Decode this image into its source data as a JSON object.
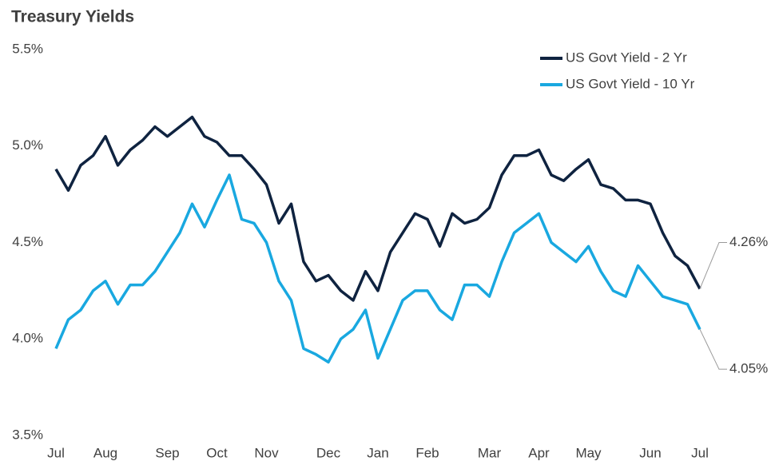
{
  "chart_data": {
    "type": "line",
    "title": "Treasury Yields",
    "categories": [
      "Jul",
      null,
      null,
      null,
      "Aug",
      null,
      null,
      null,
      null,
      "Sep",
      null,
      null,
      null,
      "Oct",
      null,
      null,
      null,
      "Nov",
      null,
      null,
      null,
      null,
      "Dec",
      null,
      null,
      null,
      "Jan",
      null,
      null,
      null,
      "Feb",
      null,
      null,
      null,
      null,
      "Mar",
      null,
      null,
      null,
      "Apr",
      null,
      null,
      null,
      "May",
      null,
      null,
      null,
      null,
      "Jun",
      null,
      null,
      null,
      "Jul"
    ],
    "series": [
      {
        "name": "US Govt Yield - 2 Yr",
        "color": "#0f2340",
        "values": [
          4.88,
          4.77,
          4.9,
          4.95,
          5.05,
          4.9,
          4.98,
          5.03,
          5.1,
          5.05,
          5.1,
          5.15,
          5.05,
          5.02,
          4.95,
          4.95,
          4.88,
          4.8,
          4.6,
          4.7,
          4.4,
          4.3,
          4.33,
          4.25,
          4.2,
          4.35,
          4.25,
          4.45,
          4.55,
          4.65,
          4.62,
          4.48,
          4.65,
          4.6,
          4.62,
          4.68,
          4.85,
          4.95,
          4.95,
          4.98,
          4.85,
          4.82,
          4.88,
          4.93,
          4.8,
          4.78,
          4.72,
          4.72,
          4.7,
          4.55,
          4.43,
          4.38,
          4.26
        ],
        "value_labels": [
          null,
          null,
          null,
          null,
          null,
          null,
          null,
          null,
          null,
          null,
          null,
          null,
          null,
          null,
          null,
          null,
          null,
          null,
          null,
          null,
          null,
          null,
          null,
          null,
          null,
          null,
          null,
          null,
          null,
          null,
          null,
          null,
          null,
          null,
          null,
          null,
          null,
          null,
          null,
          null,
          null,
          null,
          null,
          null,
          null,
          null,
          null,
          null,
          null,
          null,
          null,
          null,
          "4.26%"
        ]
      },
      {
        "name": "US Govt Yield - 10 Yr",
        "color": "#19a8e0",
        "values": [
          3.95,
          4.1,
          4.15,
          4.25,
          4.3,
          4.18,
          4.28,
          4.28,
          4.35,
          4.45,
          4.55,
          4.7,
          4.58,
          4.72,
          4.85,
          4.62,
          4.6,
          4.5,
          4.3,
          4.2,
          3.95,
          3.92,
          3.88,
          4.0,
          4.05,
          4.15,
          3.9,
          4.05,
          4.2,
          4.25,
          4.25,
          4.15,
          4.1,
          4.28,
          4.28,
          4.22,
          4.4,
          4.55,
          4.6,
          4.65,
          4.5,
          4.45,
          4.4,
          4.48,
          4.35,
          4.25,
          4.22,
          4.38,
          4.3,
          4.22,
          4.2,
          4.18,
          4.05
        ],
        "value_labels": [
          null,
          null,
          null,
          null,
          null,
          null,
          null,
          null,
          null,
          null,
          null,
          null,
          null,
          null,
          null,
          null,
          null,
          null,
          null,
          null,
          null,
          null,
          null,
          null,
          null,
          null,
          null,
          null,
          null,
          null,
          null,
          null,
          null,
          null,
          null,
          null,
          null,
          null,
          null,
          null,
          null,
          null,
          null,
          null,
          null,
          null,
          null,
          null,
          null,
          null,
          null,
          null,
          "4.05%"
        ]
      }
    ],
    "ylim": [
      3.5,
      5.5
    ],
    "yticks": [
      {
        "value": 3.5,
        "label": "3.5%"
      },
      {
        "value": 4.0,
        "label": "4.0%"
      },
      {
        "value": 4.5,
        "label": "4.5%"
      },
      {
        "value": 5.0,
        "label": "5.0%"
      },
      {
        "value": 5.5,
        "label": "5.5%"
      }
    ],
    "grid": false,
    "legend": "top-right"
  }
}
